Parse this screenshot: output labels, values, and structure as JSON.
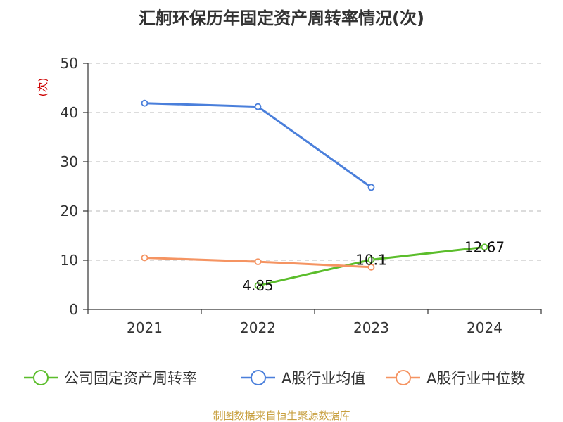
{
  "chart_data": {
    "type": "line",
    "title": "汇舸环保历年固定资产周转率情况(次)",
    "ylabel": "(次)",
    "categories": [
      "2021",
      "2022",
      "2023",
      "2024"
    ],
    "ylim": [
      0,
      50
    ],
    "yticks": [
      "0",
      "10",
      "20",
      "30",
      "40",
      "50"
    ],
    "grid": true,
    "legend_position": "bottom",
    "series": [
      {
        "name": "公司固定资产周转率",
        "color": "#5bbd2b",
        "values": [
          null,
          4.85,
          10.1,
          12.67
        ],
        "labels": [
          null,
          "4.85",
          "10.1",
          "12.67"
        ]
      },
      {
        "name": "A股行业均值",
        "color": "#4a7fdb",
        "values": [
          41.9,
          41.2,
          24.8,
          null
        ],
        "labels": [
          null,
          null,
          null,
          null
        ]
      },
      {
        "name": "A股行业中位数",
        "color": "#f59462",
        "values": [
          10.5,
          9.7,
          8.6,
          null
        ],
        "labels": [
          null,
          null,
          null,
          null
        ]
      }
    ]
  },
  "footer": {
    "source": "制图数据来自恒生聚源数据库",
    "color": "#c8a040"
  }
}
